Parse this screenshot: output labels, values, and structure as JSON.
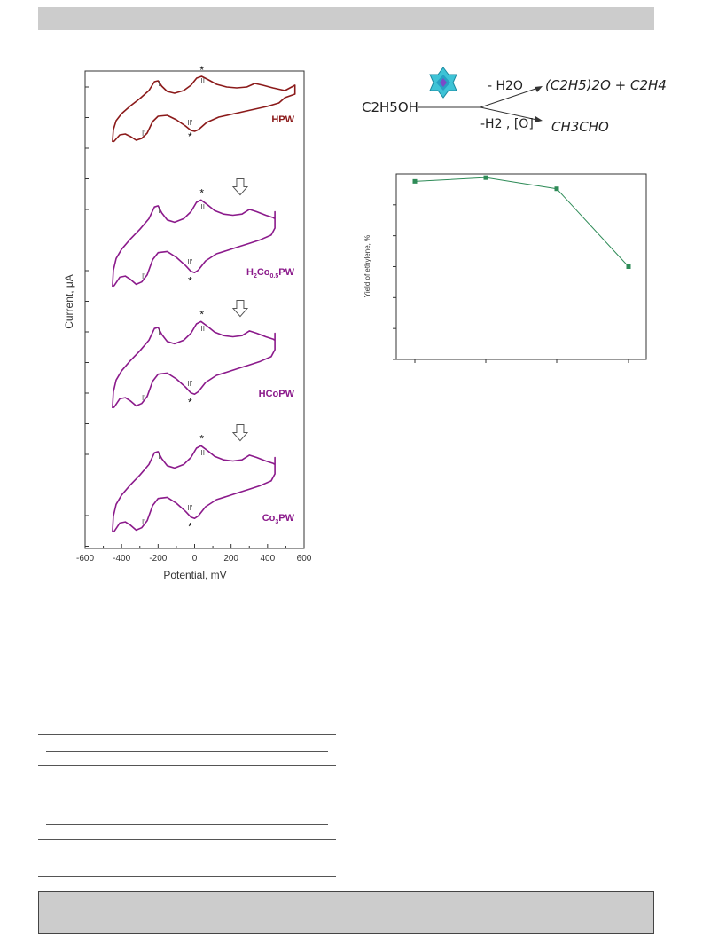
{
  "cv": {
    "ylabel": "Current, μA",
    "xlabel": "Potential, mV",
    "xticks": [
      "-600",
      "-400",
      "-200",
      "0",
      "200",
      "400",
      "600"
    ],
    "star": "*",
    "labels": [
      {
        "main": "HPW",
        "parts": [
          {
            "t": "HPW"
          }
        ],
        "color": "#8b1a1a"
      },
      {
        "main": "H2Co0.5PW",
        "parts": [
          {
            "t": "H"
          },
          {
            "t": "2",
            "sub": true
          },
          {
            "t": "Co"
          },
          {
            "t": "0.5",
            "sub": true
          },
          {
            "t": "PW"
          }
        ],
        "color": "#8b1a8b"
      },
      {
        "main": "HCoPW",
        "parts": [
          {
            "t": "HCoPW"
          }
        ],
        "color": "#8b1a8b"
      },
      {
        "main": "Co3PW",
        "parts": [
          {
            "t": "Co"
          },
          {
            "t": "3",
            "sub": true
          },
          {
            "t": "PW"
          }
        ],
        "color": "#8b1a8b"
      }
    ],
    "peaks": {
      "I": "I",
      "II": "II",
      "Ip": "I'",
      "IIp": "II'"
    }
  },
  "scheme": {
    "reactant": "C2H5OH",
    "top_arrow": "- H2O",
    "top_product": "(C2H5)2O + C2H4",
    "bottom_arrow": "-H2 , [O]",
    "bottom_product": "CH3CHO"
  },
  "yield": {
    "ylabel": "Yield of ethylene, %"
  },
  "chart_data": [
    {
      "type": "line",
      "ylabel": "Yield of ethylene, %",
      "x": [
        1,
        2,
        3,
        4
      ],
      "series": [
        {
          "values": [
            96,
            98,
            92,
            50
          ],
          "color": "#2e8b57"
        }
      ],
      "ylim": [
        0,
        100
      ],
      "grid": false
    }
  ]
}
